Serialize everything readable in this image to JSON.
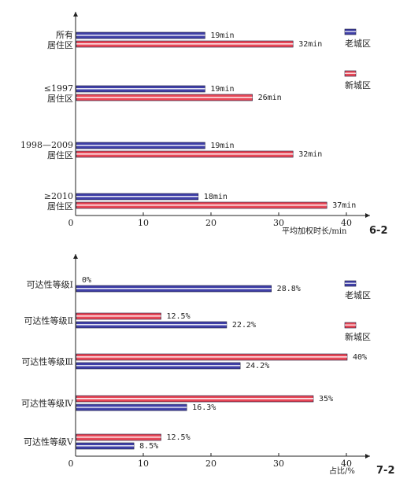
{
  "chart_data": [
    {
      "type": "bar",
      "orientation": "horizontal",
      "categories": [
        "所有\n居住区",
        "≤1997\n居住区",
        "1998—2009\n居住区",
        "≥2010\n居住区"
      ],
      "series": [
        {
          "name": "老城区",
          "color": "#4040a8",
          "values": [
            19,
            19,
            19,
            18
          ],
          "labels": [
            "19min",
            "19min",
            "19min",
            "18min"
          ]
        },
        {
          "name": "新城区",
          "color": "#e84858",
          "values": [
            32,
            26,
            32,
            37
          ],
          "labels": [
            "32min",
            "26min",
            "32min",
            "37min"
          ]
        }
      ],
      "xticks": [
        "0",
        "10",
        "20",
        "30",
        "40"
      ],
      "xlabel": "平均加权时长/min",
      "figure_label": "6-2",
      "xlim": [
        0,
        40
      ]
    },
    {
      "type": "bar",
      "orientation": "horizontal",
      "categories": [
        "可达性等级Ⅰ",
        "可达性等级Ⅱ",
        "可达性等级Ⅲ",
        "可达性等级Ⅳ",
        "可达性等级Ⅴ"
      ],
      "series": [
        {
          "name": "新城区",
          "color": "#e84858",
          "values": [
            0,
            12.5,
            40,
            35,
            12.5
          ],
          "labels": [
            "0%",
            "12.5%",
            "40%",
            "35%",
            "12.5%"
          ]
        },
        {
          "name": "老城区",
          "color": "#4040a8",
          "values": [
            28.8,
            22.2,
            24.2,
            16.3,
            8.5
          ],
          "labels": [
            "28.8%",
            "22.2%",
            "24.2%",
            "16.3%",
            "8.5%"
          ]
        }
      ],
      "xticks": [
        "0",
        "10",
        "20",
        "30",
        "40"
      ],
      "xlabel": "占比/%",
      "figure_label": "7-2",
      "xlim": [
        0,
        40
      ]
    }
  ]
}
